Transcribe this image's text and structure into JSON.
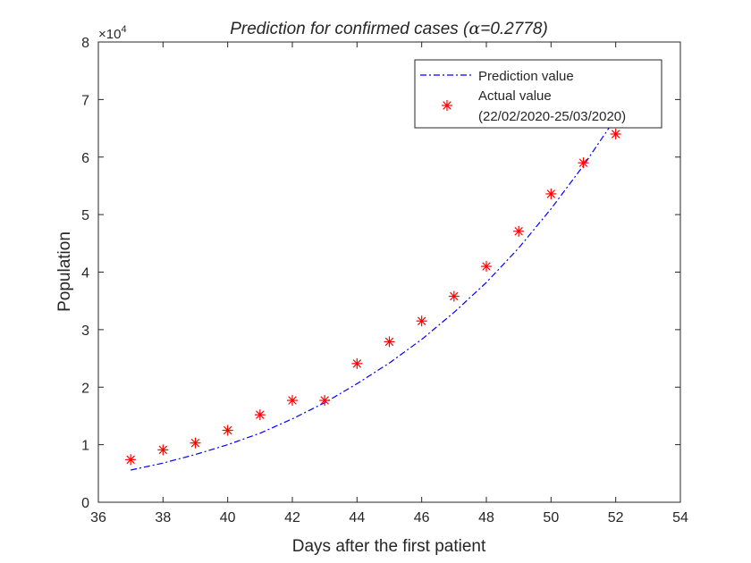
{
  "chart_data": {
    "type": "line",
    "title_prefix": "Prediction for confirmed cases (",
    "title_symbol": "α",
    "title_suffix": "=0.2778)",
    "xlabel": "Days after the first patient",
    "ylabel": "Population",
    "exponent_base": "×10",
    "exponent_power": "4",
    "xlim": [
      36,
      54
    ],
    "ylim": [
      0,
      8
    ],
    "xticks": [
      36,
      38,
      40,
      42,
      44,
      46,
      48,
      50,
      52,
      54
    ],
    "yticks": [
      0,
      1,
      2,
      3,
      4,
      5,
      6,
      7,
      8
    ],
    "legend_position": "top-right",
    "grid": false,
    "series": [
      {
        "name": "Prediction value",
        "kind": "line",
        "style": "dash-dot",
        "color": "#0000ff",
        "x": [
          37,
          38,
          39,
          40,
          41,
          42,
          43,
          44,
          45,
          46,
          47,
          48,
          49,
          50,
          51,
          52
        ],
        "y": [
          0.56,
          0.68,
          0.83,
          1.0,
          1.2,
          1.45,
          1.73,
          2.06,
          2.42,
          2.83,
          3.3,
          3.82,
          4.42,
          5.1,
          5.85,
          6.68
        ]
      },
      {
        "name": "Actual value",
        "name_line2": "(22/02/2020-25/03/2020)",
        "kind": "scatter",
        "marker": "asterisk",
        "color": "#ff0000",
        "x": [
          37,
          38,
          39,
          40,
          41,
          42,
          43,
          44,
          45,
          46,
          47,
          48,
          49,
          50,
          51,
          52
        ],
        "y": [
          0.74,
          0.91,
          1.03,
          1.25,
          1.52,
          1.77,
          1.77,
          2.41,
          2.79,
          3.15,
          3.58,
          4.1,
          4.71,
          5.36,
          5.9,
          6.4
        ]
      }
    ]
  }
}
